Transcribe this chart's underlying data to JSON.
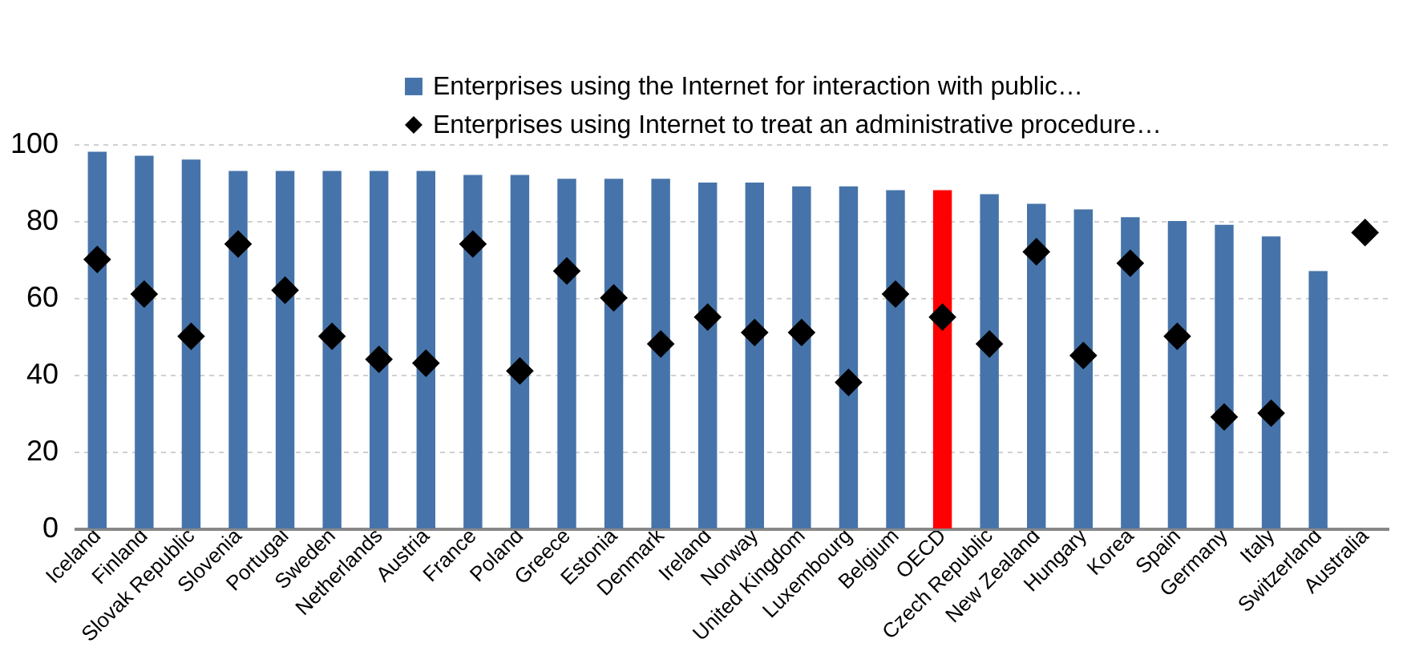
{
  "chart_data": {
    "type": "bar",
    "categories": [
      "Iceland",
      "Finland",
      "Slovak Republic",
      "Slovenia",
      "Portugal",
      "Sweden",
      "Netherlands",
      "Austria",
      "France",
      "Poland",
      "Greece",
      "Estonia",
      "Denmark",
      "Ireland",
      "Norway",
      "United Kingdom",
      "Luxembourg",
      "Belgium",
      "OECD",
      "Czech Republic",
      "New Zealand",
      "Hungary",
      "Korea",
      "Spain",
      "Germany",
      "Italy",
      "Switzerland",
      "Australia"
    ],
    "series": [
      {
        "name": "Enterprises using the Internet for interaction with public…",
        "color": "#4674aa",
        "colors": [
          "#4674aa",
          "#4674aa",
          "#4674aa",
          "#4674aa",
          "#4674aa",
          "#4674aa",
          "#4674aa",
          "#4674aa",
          "#4674aa",
          "#4674aa",
          "#4674aa",
          "#4674aa",
          "#4674aa",
          "#4674aa",
          "#4674aa",
          "#4674aa",
          "#4674aa",
          "#4674aa",
          "#ff0000",
          "#4674aa",
          "#4674aa",
          "#4674aa",
          "#4674aa",
          "#4674aa",
          "#4674aa",
          "#4674aa",
          "#4674aa",
          "#4674aa"
        ],
        "values": [
          98,
          97,
          96,
          93,
          93,
          93,
          93,
          93,
          92,
          92,
          91,
          91,
          91,
          90,
          90,
          89,
          89,
          88,
          88,
          87,
          84.5,
          83,
          81,
          80,
          79,
          76,
          67,
          null
        ]
      },
      {
        "name": "Enterprises using Internet to treat an administrative procedure…",
        "type": "scatter",
        "marker": "diamond",
        "color": "#000000",
        "values": [
          70,
          61,
          50,
          74,
          62,
          50,
          44,
          43,
          74,
          41,
          67,
          60,
          48,
          55,
          51,
          51,
          38,
          61,
          55,
          48,
          72,
          45,
          69,
          50,
          29,
          30,
          null,
          77
        ]
      }
    ],
    "ylim": [
      0,
      100
    ],
    "yticks": [
      0,
      20,
      40,
      60,
      80,
      100
    ],
    "grid": "y",
    "legend": "top"
  }
}
